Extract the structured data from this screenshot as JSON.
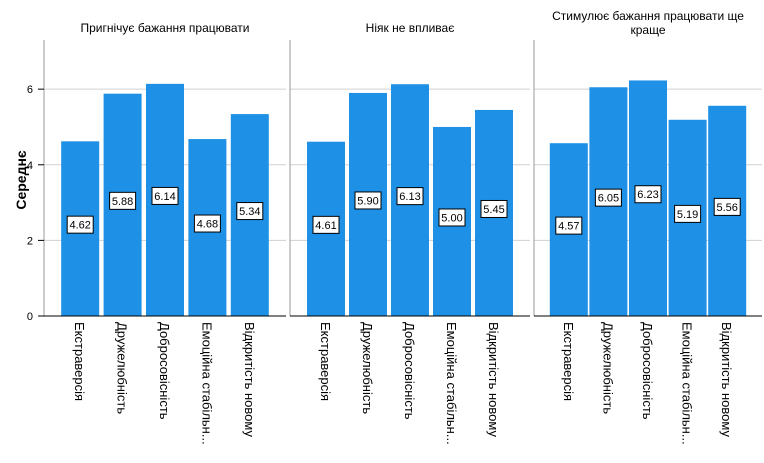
{
  "chart_data": {
    "type": "bar",
    "ylabel": "Середнє",
    "ylim": [
      0,
      7.3
    ],
    "yticks": [
      0,
      2,
      4,
      6
    ],
    "grid": true,
    "categories": [
      "Екстраверсія",
      "Дружелюбність",
      "Добросовісність",
      "Емоційна стабільн...",
      "Відкритість новому"
    ],
    "bar_color": "#1e90e6",
    "panels": [
      {
        "title": [
          "Пригнічує бажання працювати"
        ],
        "values": [
          4.62,
          5.88,
          6.14,
          4.68,
          5.34
        ]
      },
      {
        "title": [
          "Ніяк не впливає"
        ],
        "values": [
          4.61,
          5.9,
          6.13,
          5.0,
          5.45
        ]
      },
      {
        "title": [
          "Стимулює бажання працювати ще",
          "краще"
        ],
        "values": [
          4.57,
          6.05,
          6.23,
          5.19,
          5.56
        ]
      }
    ]
  }
}
